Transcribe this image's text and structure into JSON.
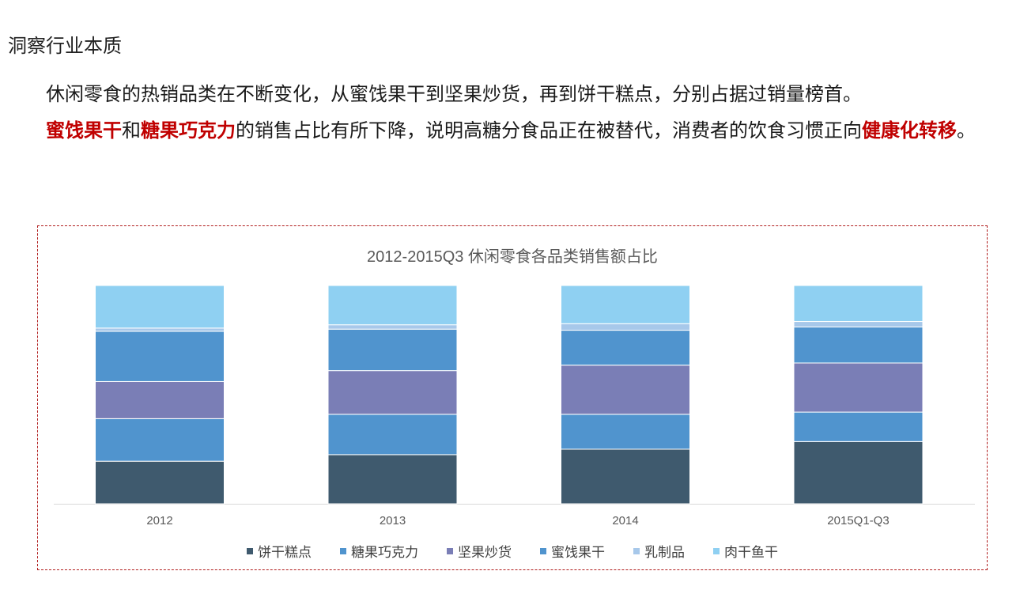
{
  "header": {
    "section_title": "洞察行业本质"
  },
  "summary": {
    "p1": "休闲零食的热销品类在不断变化，从蜜饯果干到坚果炒货，再到饼干糕点，分别占据过销量榜首。",
    "hl1": "蜜饯果干",
    "t1": "和",
    "hl2": "糖果巧克力",
    "t2": "的销售占比有所下降，说明高糖分食品正在被替代，消费者的饮食习惯正向",
    "hl3": "健康化转移",
    "t3": "。"
  },
  "colors": {
    "highlight": "#c00000",
    "border": "#b01c1c"
  },
  "chart_data": {
    "type": "bar",
    "stacked": true,
    "title": "2012-2015Q3 休闲零食各品类销售额占比",
    "categories": [
      "2012",
      "2013",
      "2014",
      "2015Q1-Q3"
    ],
    "ylim": [
      0,
      100
    ],
    "grid": false,
    "legend_position": "bottom",
    "series": [
      {
        "name": "饼干糕点",
        "color": "#3f5a6e",
        "values": [
          19.5,
          22.5,
          25.0,
          28.5
        ]
      },
      {
        "name": "糖果巧克力",
        "color": "#5094ce",
        "values": [
          19.5,
          18.5,
          16.0,
          13.5
        ]
      },
      {
        "name": "坚果炒货",
        "color": "#7a7eb6",
        "values": [
          17.0,
          20.0,
          22.5,
          22.5
        ]
      },
      {
        "name": "蜜饯果干",
        "color": "#5094ce",
        "values": [
          23.0,
          19.0,
          16.0,
          16.5
        ]
      },
      {
        "name": "乳制品",
        "color": "#a7c8ea",
        "values": [
          1.5,
          2.0,
          3.0,
          2.5
        ]
      },
      {
        "name": "肉干鱼干",
        "color": "#8fd0f2",
        "values": [
          19.5,
          18.0,
          17.5,
          16.5
        ]
      }
    ]
  }
}
